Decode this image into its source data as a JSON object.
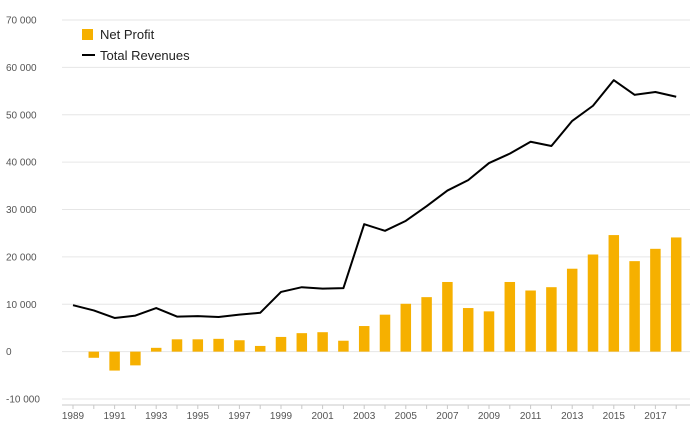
{
  "chart_data": {
    "type": "bar",
    "years": [
      "1989",
      "1990",
      "1991",
      "1992",
      "1993",
      "1994",
      "1995",
      "1996",
      "1997",
      "1998",
      "1999",
      "2000",
      "2001",
      "2002",
      "2003",
      "2004",
      "2005",
      "2006",
      "2007",
      "2008",
      "2009",
      "2010",
      "2011",
      "2012",
      "2013",
      "2014",
      "2015",
      "2016",
      "2017",
      "2018"
    ],
    "x_tick_labels": [
      "1989",
      "1991",
      "1993",
      "1995",
      "1997",
      "1999",
      "2001",
      "2003",
      "2005",
      "2007",
      "2009",
      "2011",
      "2013",
      "2015",
      "2017"
    ],
    "y_tick_labels": [
      "-10 000",
      "0",
      "10 000",
      "20 000",
      "30 000",
      "40 000",
      "50 000",
      "60 000",
      "70 000"
    ],
    "ylim": [
      -10000,
      70000
    ],
    "series": [
      {
        "name": "Net Profit",
        "kind": "bar",
        "color": "#F6B000",
        "values": [
          null,
          -1300,
          -4000,
          -2900,
          800,
          2600,
          2600,
          2700,
          2400,
          1200,
          3100,
          3900,
          4100,
          2300,
          5400,
          7800,
          10100,
          11500,
          14700,
          9200,
          8500,
          14700,
          12900,
          13600,
          17500,
          20500,
          24600,
          19100,
          21700,
          24100
        ]
      },
      {
        "name": "Total Revenues",
        "kind": "line",
        "color": "#000000",
        "values": [
          9800,
          8700,
          7100,
          7600,
          9200,
          7400,
          7500,
          7300,
          7800,
          8200,
          12600,
          13600,
          13300,
          13400,
          26900,
          25500,
          27600,
          30700,
          34000,
          36200,
          39800,
          41800,
          44300,
          43400,
          48700,
          51900,
          57300,
          54200,
          54800,
          53800
        ]
      }
    ],
    "legend": {
      "position": "top-left"
    },
    "grid": true
  }
}
